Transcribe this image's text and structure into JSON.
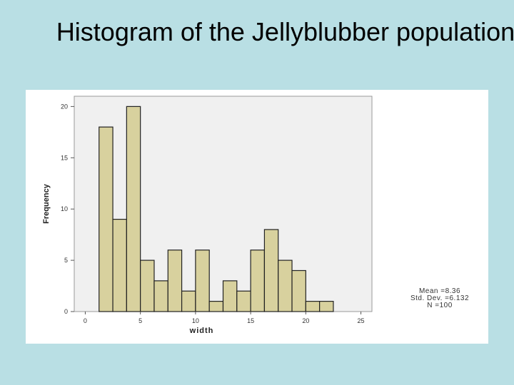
{
  "slide": {
    "title": "Histogram of the Jellyblubber population"
  },
  "chart_data": {
    "type": "bar",
    "subtype": "histogram",
    "xlabel": "width",
    "ylabel": "Frequency",
    "xlim": [
      -1,
      26
    ],
    "ylim": [
      0,
      21
    ],
    "xticks": [
      0,
      5,
      10,
      15,
      20,
      25
    ],
    "yticks": [
      0,
      5,
      10,
      15,
      20
    ],
    "bin_width": 1.25,
    "bins": [
      {
        "start": 1.25,
        "value": 18
      },
      {
        "start": 2.5,
        "value": 9
      },
      {
        "start": 3.75,
        "value": 20
      },
      {
        "start": 5.0,
        "value": 5
      },
      {
        "start": 6.25,
        "value": 3
      },
      {
        "start": 7.5,
        "value": 6
      },
      {
        "start": 8.75,
        "value": 2
      },
      {
        "start": 10.0,
        "value": 6
      },
      {
        "start": 11.25,
        "value": 1
      },
      {
        "start": 12.5,
        "value": 3
      },
      {
        "start": 13.75,
        "value": 2
      },
      {
        "start": 15.0,
        "value": 6
      },
      {
        "start": 16.25,
        "value": 8
      },
      {
        "start": 17.5,
        "value": 5
      },
      {
        "start": 18.75,
        "value": 4
      },
      {
        "start": 20.0,
        "value": 1
      },
      {
        "start": 21.25,
        "value": 1
      }
    ],
    "grid": false,
    "bar_color": "#d8d19e",
    "bar_edge_color": "#222222",
    "plot_background": "#f0f0f0",
    "stats": {
      "mean": "Mean =8.36",
      "std": "Std. Dev. =6.132",
      "n": "N =100"
    }
  }
}
